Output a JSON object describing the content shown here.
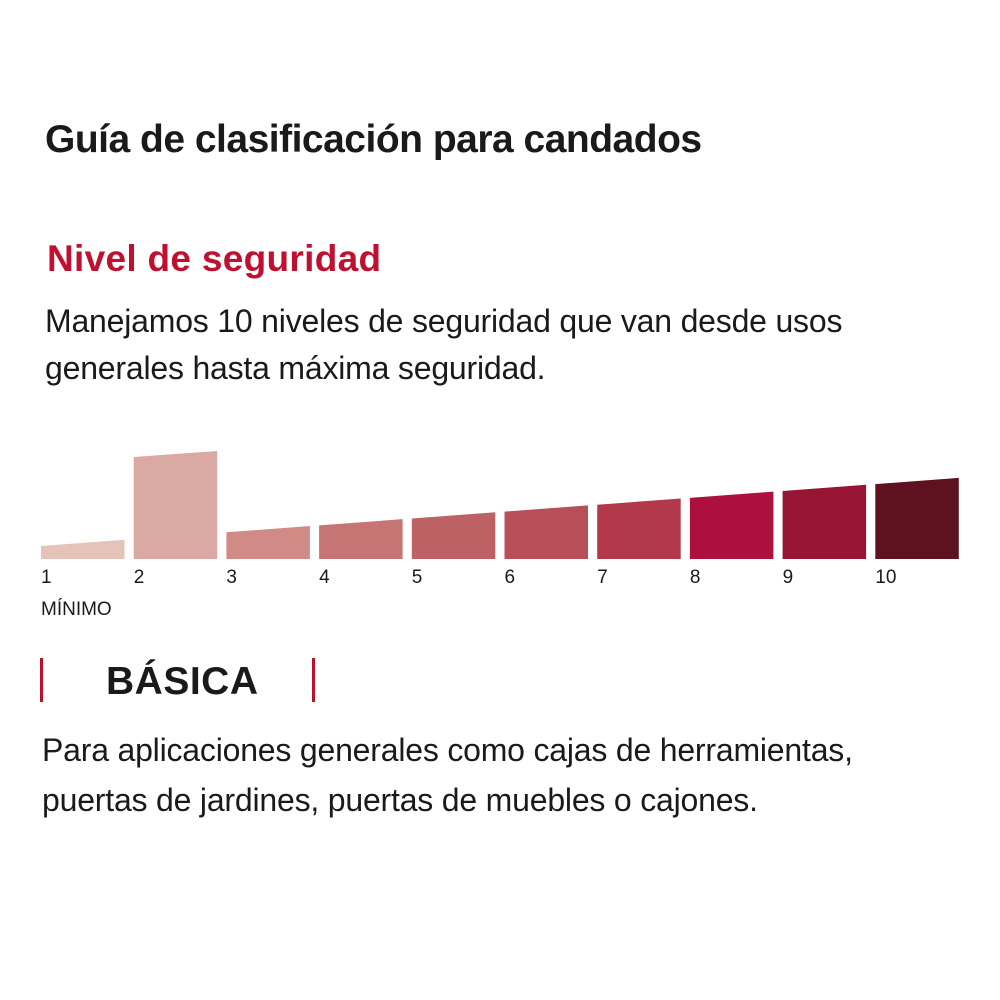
{
  "title": "Guía de clasificación para candados",
  "section": {
    "heading": "Nivel de seguridad",
    "description_lines": [
      "Manejamos 10 niveles de seguridad que van desde usos",
      "generales hasta máxima seguridad."
    ]
  },
  "chart_data": {
    "type": "bar",
    "categories": [
      "1",
      "2",
      "3",
      "4",
      "5",
      "6",
      "7",
      "8",
      "9",
      "10"
    ],
    "min_label": "MÍNIMO",
    "highlighted_level": 2,
    "colors": [
      "#e5c3b9",
      "#daa9a4",
      "#d18b87",
      "#c67474",
      "#bd6264",
      "#b84e57",
      "#b2394a",
      "#ad103c",
      "#981434",
      "#5e1220"
    ]
  },
  "level": {
    "name": "BÁSICA",
    "accent_color": "#c0102f",
    "description_lines": [
      "Para aplicaciones generales como cajas de herramientas,",
      "puertas de jardines, puertas de muebles o cajones."
    ]
  }
}
